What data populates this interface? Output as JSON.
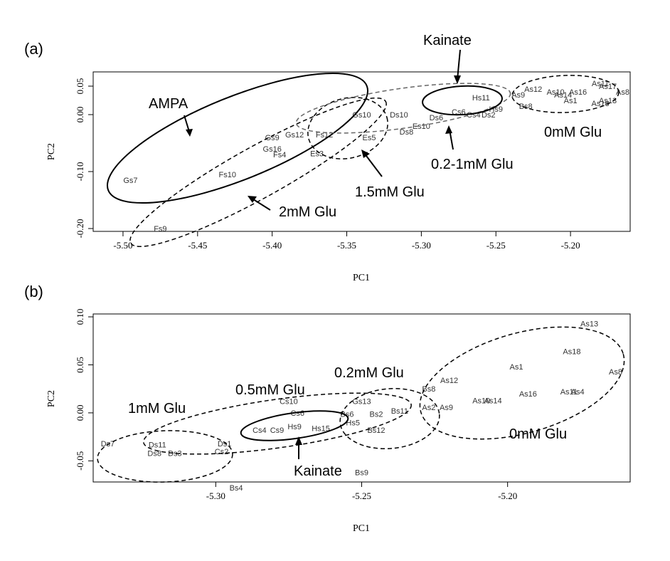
{
  "chart_data": [
    {
      "panel": "(a)",
      "type": "scatter",
      "xlabel": "PC1",
      "ylabel": "PC2",
      "xlim": [
        -5.52,
        -5.16
      ],
      "ylim": [
        -0.205,
        0.075
      ],
      "x_ticks": [
        -5.5,
        -5.45,
        -5.4,
        -5.35,
        -5.3,
        -5.25,
        -5.2
      ],
      "x_tick_labels": [
        "-5.50",
        "-5.45",
        "-5.40",
        "-5.35",
        "-5.30",
        "-5.25",
        "-5.20"
      ],
      "y_ticks": [
        0.05,
        0.0,
        -0.1,
        -0.2
      ],
      "y_tick_labels": [
        "0.05",
        "0.00",
        "-0.10",
        "-0.20"
      ],
      "points": [
        {
          "label": "Gs7",
          "x": -5.495,
          "y": -0.115
        },
        {
          "label": "Fs9",
          "x": -5.475,
          "y": -0.2
        },
        {
          "label": "Fs10",
          "x": -5.43,
          "y": -0.105
        },
        {
          "label": "Gs9",
          "x": -5.4,
          "y": -0.04
        },
        {
          "label": "Gs12",
          "x": -5.385,
          "y": -0.035
        },
        {
          "label": "Fs12",
          "x": -5.365,
          "y": -0.035
        },
        {
          "label": "Gs16",
          "x": -5.4,
          "y": -0.06
        },
        {
          "label": "Fs4",
          "x": -5.395,
          "y": -0.07
        },
        {
          "label": "Es3",
          "x": -5.37,
          "y": -0.068
        },
        {
          "label": "Gs10",
          "x": -5.34,
          "y": 0.0
        },
        {
          "label": "Es5",
          "x": -5.335,
          "y": -0.04
        },
        {
          "label": "Ds10",
          "x": -5.315,
          "y": 0.0
        },
        {
          "label": "Ds8",
          "x": -5.31,
          "y": -0.03
        },
        {
          "label": "Es10",
          "x": -5.3,
          "y": -0.02
        },
        {
          "label": "Ds6",
          "x": -5.29,
          "y": -0.005
        },
        {
          "label": "Cs6",
          "x": -5.275,
          "y": 0.005
        },
        {
          "label": "Hs11",
          "x": -5.26,
          "y": 0.03
        },
        {
          "label": "Hs9",
          "x": -5.25,
          "y": 0.01
        },
        {
          "label": "Cs4",
          "x": -5.265,
          "y": 0.0
        },
        {
          "label": "Ds2",
          "x": -5.255,
          "y": 0.0
        },
        {
          "label": "As9",
          "x": -5.235,
          "y": 0.035
        },
        {
          "label": "As12",
          "x": -5.225,
          "y": 0.045
        },
        {
          "label": "Bs8",
          "x": -5.23,
          "y": 0.015
        },
        {
          "label": "As10",
          "x": -5.21,
          "y": 0.04
        },
        {
          "label": "As14",
          "x": -5.205,
          "y": 0.035
        },
        {
          "label": "As16",
          "x": -5.195,
          "y": 0.04
        },
        {
          "label": "As1",
          "x": -5.2,
          "y": 0.025
        },
        {
          "label": "As11",
          "x": -5.18,
          "y": 0.055
        },
        {
          "label": "As17",
          "x": -5.175,
          "y": 0.05
        },
        {
          "label": "As8",
          "x": -5.165,
          "y": 0.04
        },
        {
          "label": "As13",
          "x": -5.175,
          "y": 0.025
        },
        {
          "label": "As18",
          "x": -5.18,
          "y": 0.02
        }
      ],
      "annotations": [
        {
          "text": "AMPA"
        },
        {
          "text": "Kainate"
        },
        {
          "text": "0mM Glu"
        },
        {
          "text": "0.2-1mM Glu"
        },
        {
          "text": "1.5mM Glu"
        },
        {
          "text": "2mM Glu"
        }
      ]
    },
    {
      "panel": "(b)",
      "type": "scatter",
      "xlabel": "PC1",
      "ylabel": "PC2",
      "xlim": [
        -5.342,
        -5.158
      ],
      "ylim": [
        -0.072,
        0.103
      ],
      "x_ticks": [
        -5.3,
        -5.25,
        -5.2
      ],
      "x_tick_labels": [
        "-5.30",
        "-5.25",
        "-5.20"
      ],
      "y_ticks": [
        0.1,
        0.05,
        0.0,
        -0.05
      ],
      "y_tick_labels": [
        "0.10",
        "0.05",
        "0.00",
        "-0.05"
      ],
      "points": [
        {
          "label": "Ds7",
          "x": -5.337,
          "y": -0.032
        },
        {
          "label": "Ds11",
          "x": -5.32,
          "y": -0.033
        },
        {
          "label": "Ds8",
          "x": -5.321,
          "y": -0.042
        },
        {
          "label": "Ds3",
          "x": -5.314,
          "y": -0.042
        },
        {
          "label": "Ds1",
          "x": -5.297,
          "y": -0.032
        },
        {
          "label": "Cs2",
          "x": -5.298,
          "y": -0.04
        },
        {
          "label": "Bs4",
          "x": -5.293,
          "y": -0.078
        },
        {
          "label": "Cs10",
          "x": -5.275,
          "y": 0.012
        },
        {
          "label": "Cs6",
          "x": -5.272,
          "y": 0.0
        },
        {
          "label": "Cs4",
          "x": -5.285,
          "y": -0.018
        },
        {
          "label": "Cs9",
          "x": -5.279,
          "y": -0.018
        },
        {
          "label": "Hs9",
          "x": -5.273,
          "y": -0.014
        },
        {
          "label": "Hs15",
          "x": -5.264,
          "y": -0.016
        },
        {
          "label": "Gs13",
          "x": -5.25,
          "y": 0.012
        },
        {
          "label": "Bs6",
          "x": -5.255,
          "y": -0.001
        },
        {
          "label": "Bs2",
          "x": -5.245,
          "y": -0.001
        },
        {
          "label": "Bs11",
          "x": -5.237,
          "y": 0.002
        },
        {
          "label": "Hs5",
          "x": -5.253,
          "y": -0.01
        },
        {
          "label": "Bs12",
          "x": -5.245,
          "y": -0.018
        },
        {
          "label": "Bs9",
          "x": -5.25,
          "y": -0.062
        },
        {
          "label": "Bs8",
          "x": -5.227,
          "y": 0.025
        },
        {
          "label": "As12",
          "x": -5.22,
          "y": 0.034
        },
        {
          "label": "As2",
          "x": -5.227,
          "y": 0.006
        },
        {
          "label": "As9",
          "x": -5.221,
          "y": 0.006
        },
        {
          "label": "As10",
          "x": -5.209,
          "y": 0.013
        },
        {
          "label": "As14",
          "x": -5.205,
          "y": 0.013
        },
        {
          "label": "As1",
          "x": -5.197,
          "y": 0.048
        },
        {
          "label": "As16",
          "x": -5.193,
          "y": 0.02
        },
        {
          "label": "As18",
          "x": -5.178,
          "y": 0.064
        },
        {
          "label": "As13",
          "x": -5.172,
          "y": 0.093
        },
        {
          "label": "As8",
          "x": -5.163,
          "y": 0.043
        },
        {
          "label": "As11",
          "x": -5.179,
          "y": 0.022
        },
        {
          "label": "As4",
          "x": -5.176,
          "y": 0.022
        }
      ],
      "annotations": [
        {
          "text": "1mM Glu"
        },
        {
          "text": "0.5mM Glu"
        },
        {
          "text": "0.2mM Glu"
        },
        {
          "text": "0mM Glu"
        },
        {
          "text": "Kainate"
        }
      ]
    }
  ]
}
